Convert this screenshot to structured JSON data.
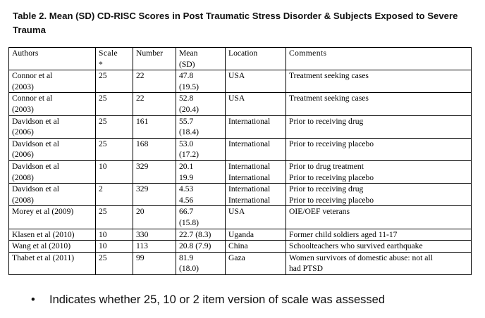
{
  "caption": "Table 2.  Mean (SD) CD-RISC Scores in Post Traumatic Stress Disorder & Subjects Exposed to Severe Trauma",
  "columns": [
    {
      "line1": "Authors",
      "line2": ""
    },
    {
      "line1": "Scale",
      "line2": "*"
    },
    {
      "line1": "Number",
      "line2": ""
    },
    {
      "line1": "Mean",
      "line2": "(SD)"
    },
    {
      "line1": "Location",
      "line2": ""
    },
    {
      "line1": "Comments",
      "line2": ""
    }
  ],
  "rows": [
    {
      "author": [
        "Connor et al",
        "(2003)"
      ],
      "scale": "25",
      "number": "22",
      "mean": [
        "47.8",
        "(19.5)"
      ],
      "location": [
        "USA"
      ],
      "comments": [
        "Treatment seeking cases"
      ]
    },
    {
      "author": [
        "Connor et al",
        "(2003)"
      ],
      "scale": "25",
      "number": "22",
      "mean": [
        "52.8",
        "(20.4)"
      ],
      "location": [
        "USA"
      ],
      "comments": [
        "Treatment seeking cases"
      ]
    },
    {
      "author": [
        "Davidson et al",
        "(2006)"
      ],
      "scale": "25",
      "number": "161",
      "mean": [
        "55.7",
        "(18.4)"
      ],
      "location": [
        "International"
      ],
      "comments": [
        "Prior to receiving drug"
      ]
    },
    {
      "author": [
        "Davidson et al",
        "(2006)"
      ],
      "scale": "25",
      "number": "168",
      "mean": [
        "53.0",
        "(17.2)"
      ],
      "location": [
        "International"
      ],
      "comments": [
        "Prior to receiving placebo"
      ]
    },
    {
      "author": [
        "Davidson et al",
        "(2008)"
      ],
      "scale": "10",
      "number": "329",
      "mean": [
        "20.1",
        "19.9"
      ],
      "location": [
        "International",
        "International"
      ],
      "comments": [
        "Prior to drug treatment",
        "Prior to receiving placebo"
      ]
    },
    {
      "author": [
        "Davidson et al",
        "(2008)"
      ],
      "scale": "2",
      "number": "329",
      "mean": [
        "4.53",
        "4.56"
      ],
      "location": [
        "International",
        "International"
      ],
      "comments": [
        "Prior to receiving drug",
        "Prior to receiving placebo"
      ]
    },
    {
      "author": [
        "Morey et al (2009)"
      ],
      "scale": "25",
      "number": "20",
      "mean": [
        "66.7",
        "(15.8)"
      ],
      "location": [
        "USA"
      ],
      "comments": [
        "OIE/OEF veterans"
      ]
    },
    {
      "author": [
        "Klasen et al (2010)"
      ],
      "scale": "10",
      "number": "330",
      "mean": [
        "22.7 (8.3)"
      ],
      "location": [
        "Uganda"
      ],
      "comments": [
        "Former child soldiers aged 11-17"
      ]
    },
    {
      "author": [
        "Wang et al (2010)"
      ],
      "scale": "10",
      "number": "113",
      "mean": [
        "20.8 (7.9)"
      ],
      "location": [
        "China"
      ],
      "comments": [
        "Schoolteachers who survived earthquake"
      ]
    },
    {
      "author": [
        "Thabet et al (2011)"
      ],
      "scale": "25",
      "number": "99",
      "mean": [
        "81.9",
        "(18.0)"
      ],
      "location": [
        "Gaza"
      ],
      "comments": [
        "Women survivors of domestic abuse: not all",
        "had PTSD"
      ]
    }
  ],
  "footnote": {
    "bullet": "•",
    "text": "Indicates whether 25, 10 or 2 item version of scale was assessed"
  }
}
